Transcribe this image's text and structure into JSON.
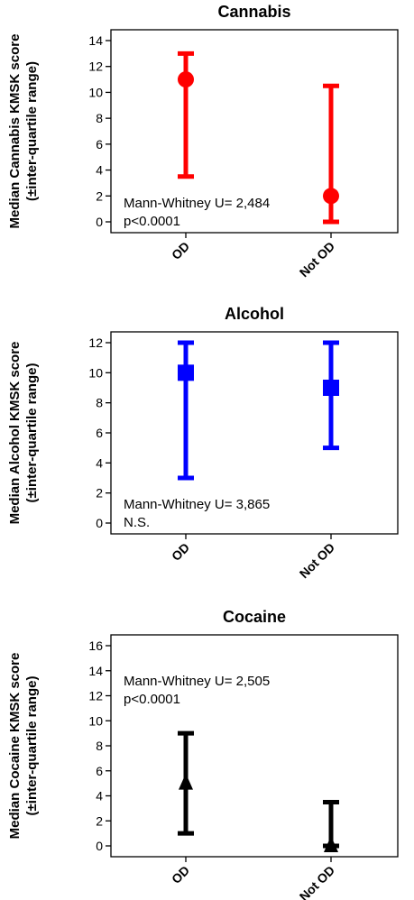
{
  "chart_data": [
    {
      "type": "scatter",
      "title": "Cannabis",
      "ylabel": "Median Cannabis KMSK score",
      "ylabel2": "(±inter-quartile range)",
      "categories": [
        "OD",
        "Not OD"
      ],
      "median": [
        11,
        2
      ],
      "q1": [
        3.5,
        0
      ],
      "q3": [
        13,
        10.5
      ],
      "ylim": [
        0,
        14
      ],
      "yticks": [
        0,
        2,
        4,
        6,
        8,
        10,
        12,
        14
      ],
      "marker": "circle",
      "color": "#ff0000",
      "annotation": [
        "Mann-Whitney U= 2,484",
        "p<0.0001"
      ],
      "annotation_position": "bottom-left",
      "grid": false
    },
    {
      "type": "scatter",
      "title": "Alcohol",
      "ylabel": "Median Alcohol KMSK score",
      "ylabel2": "(±inter-quartile range)",
      "categories": [
        "OD",
        "Not OD"
      ],
      "median": [
        10,
        9
      ],
      "q1": [
        3,
        5
      ],
      "q3": [
        12,
        12
      ],
      "ylim": [
        0,
        12
      ],
      "yticks": [
        0,
        2,
        4,
        6,
        8,
        10,
        12
      ],
      "marker": "square",
      "color": "#0000ff",
      "annotation": [
        "Mann-Whitney U= 3,865",
        "N.S."
      ],
      "annotation_position": "bottom-left",
      "grid": false
    },
    {
      "type": "scatter",
      "title": "Cocaine",
      "ylabel": "Median Cocaine KMSK score",
      "ylabel2": "(±inter-quartile range)",
      "categories": [
        "OD",
        "Not OD"
      ],
      "median": [
        5,
        0
      ],
      "q1": [
        1,
        0
      ],
      "q3": [
        9,
        3.5
      ],
      "ylim": [
        0,
        16
      ],
      "yticks": [
        0,
        2,
        4,
        6,
        8,
        10,
        12,
        14,
        16
      ],
      "marker": "triangle",
      "color": "#000000",
      "annotation": [
        "Mann-Whitney U= 2,505",
        "p<0.0001"
      ],
      "annotation_position": "top-left",
      "grid": false
    }
  ]
}
